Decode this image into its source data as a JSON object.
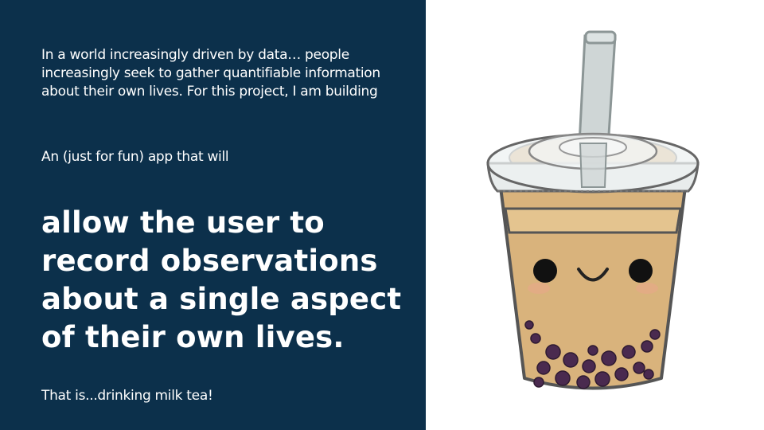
{
  "slide": {
    "intro": "In a world increasingly driven by data… people increasingly seek to gather quantifiable information about their own lives.  For this project, I am building",
    "subintro": "An (just for fun) app that will",
    "headline": "allow the user to record observations about a single aspect of their own lives.",
    "outro": "That is...drinking milk tea!"
  },
  "colors": {
    "panel_background": "#0c304b",
    "text": "#ffffff",
    "tea": "#d9b37c",
    "pearls": "#4a2a4f"
  },
  "illustration": {
    "subject": "bubble-tea-cup-icon"
  }
}
